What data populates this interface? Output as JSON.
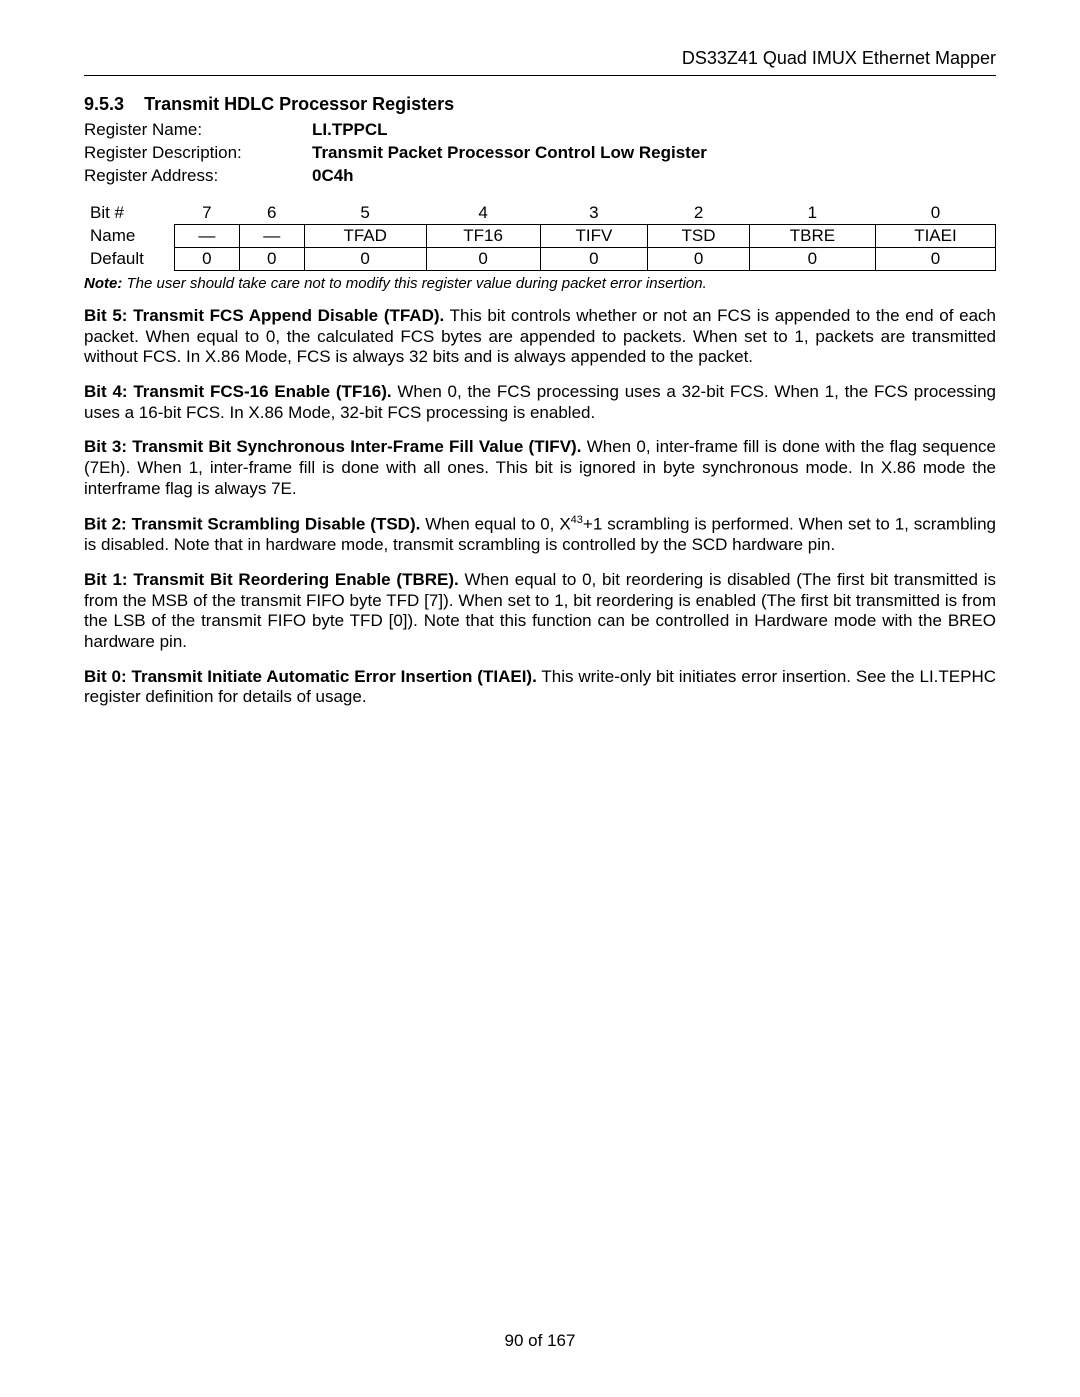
{
  "header": {
    "doc_title": "DS33Z41 Quad IMUX Ethernet Mapper"
  },
  "section": {
    "number": "9.5.3",
    "title": "Transmit HDLC Processor Registers"
  },
  "register": {
    "name_label": "Register Name:",
    "name_value": "LI.TPPCL",
    "desc_label": "Register Description:",
    "desc_value": "Transmit Packet Processor Control Low Register",
    "addr_label": "Register Address:",
    "addr_value": "0C4h"
  },
  "bitmap": {
    "header_label": "Bit #",
    "bits": [
      "7",
      "6",
      "5",
      "4",
      "3",
      "2",
      "1",
      "0"
    ],
    "name_label": "Name",
    "names": [
      "—",
      "—",
      "TFAD",
      "TF16",
      "TIFV",
      "TSD",
      "TBRE",
      "TIAEI"
    ],
    "default_label": "Default",
    "defaults": [
      "0",
      "0",
      "0",
      "0",
      "0",
      "0",
      "0",
      "0"
    ]
  },
  "note": {
    "label": "Note:",
    "text": " The user should take care not to modify this register value during packet error insertion."
  },
  "bits_desc": {
    "b5": {
      "bold": "Bit 5: Transmit FCS Append Disable (TFAD).",
      "text": " This bit controls whether or not an FCS is appended to the end of each packet. When equal to 0, the calculated FCS bytes are appended to packets. When set to 1, packets are transmitted without FCS. In X.86 Mode, FCS is always 32 bits and is always appended to the packet."
    },
    "b4": {
      "bold": "Bit 4: Transmit FCS-16 Enable (TF16).",
      "text": " When 0, the FCS processing uses a 32-bit FCS. When 1, the FCS processing uses a 16-bit FCS. In X.86 Mode, 32-bit FCS processing is enabled."
    },
    "b3": {
      "bold": "Bit 3: Transmit Bit Synchronous Inter-Frame Fill Value (TIFV).",
      "text": " When 0, inter-frame fill is done with the flag sequence (7Eh). When 1, inter-frame fill is done with all ones. This bit is ignored in byte synchronous mode. In X.86 mode the interframe flag is always 7E."
    },
    "b2": {
      "bold": "Bit 2: Transmit Scrambling Disable (TSD).",
      "text_pre": " When equal to 0, X",
      "sup": "43",
      "text_post": "+1 scrambling is performed. When set to 1, scrambling is disabled. Note that in hardware mode, transmit scrambling is controlled by the SCD hardware pin."
    },
    "b1": {
      "bold": "Bit 1: Transmit Bit Reordering Enable (TBRE).",
      "text": " When equal to 0, bit reordering is disabled (The first bit transmitted is from the MSB of the transmit FIFO byte TFD [7]). When set to 1, bit reordering is enabled (The first bit transmitted is from the LSB of the transmit FIFO byte TFD [0]). Note that this function can be controlled in Hardware mode with the BREO hardware pin."
    },
    "b0": {
      "bold": "Bit 0: Transmit Initiate Automatic Error Insertion (TIAEI).",
      "text": " This write-only bit initiates error insertion. See the LI.TEPHC register definition for details of usage."
    }
  },
  "footer": {
    "text": "90 of 167"
  }
}
